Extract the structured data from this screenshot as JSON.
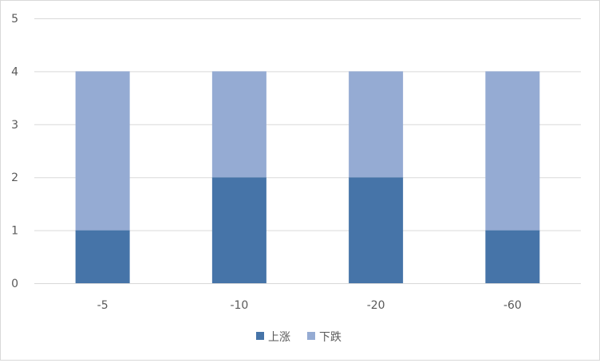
{
  "chart_data": {
    "type": "bar",
    "stacked": true,
    "categories": [
      "-5",
      "-10",
      "-20",
      "-60"
    ],
    "series": [
      {
        "name": "上涨",
        "values": [
          1,
          2,
          2,
          1
        ],
        "color": "#4674a8"
      },
      {
        "name": "下跌",
        "values": [
          3,
          2,
          2,
          3
        ],
        "color": "#95abd3"
      }
    ],
    "title": "",
    "xlabel": "",
    "ylabel": "",
    "ylim": [
      0,
      5
    ],
    "yticks": [
      0,
      1,
      2,
      3,
      4,
      5
    ],
    "grid": true,
    "legend": "bottom"
  }
}
